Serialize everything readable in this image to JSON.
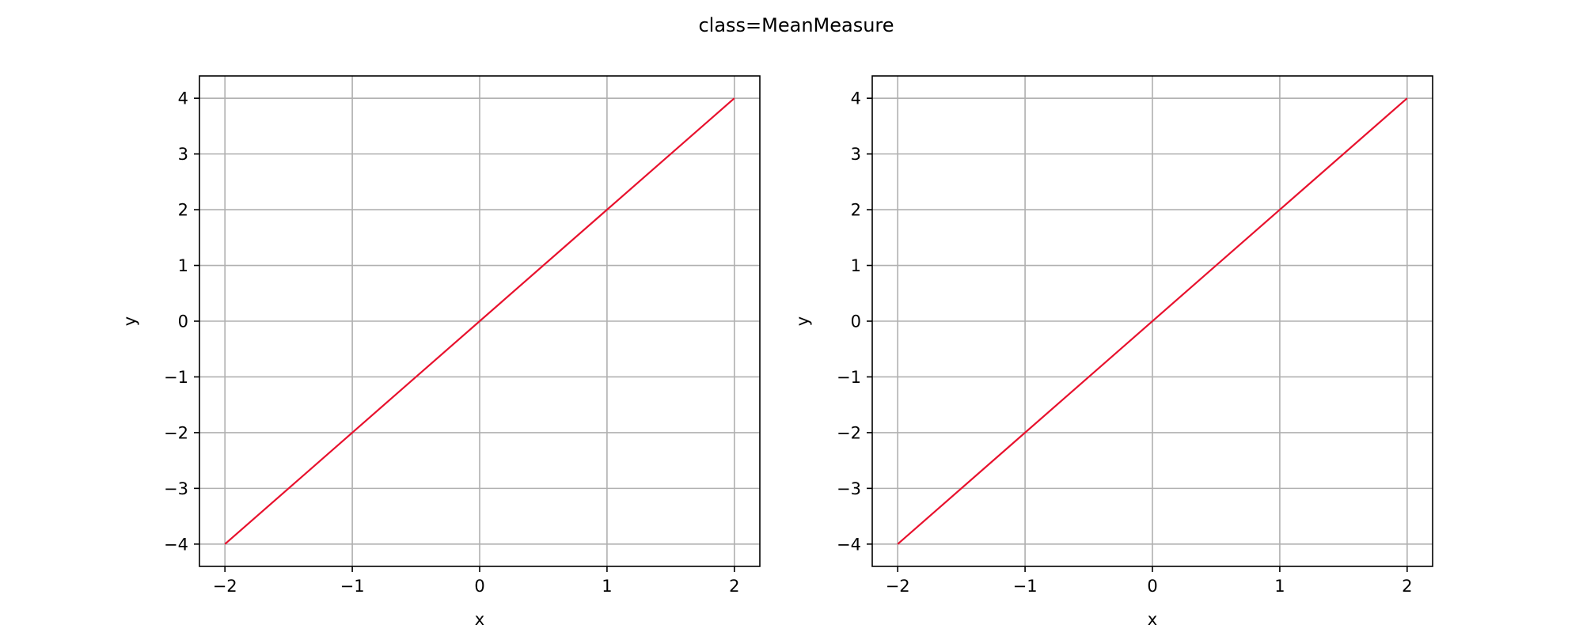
{
  "figure": {
    "title": "class=MeanMeasure"
  },
  "chart_data": [
    {
      "type": "line",
      "title": "",
      "xlabel": "x",
      "ylabel": "y",
      "xlim": [
        -2.2,
        2.2
      ],
      "ylim": [
        -4.4,
        4.4
      ],
      "xticks": [
        -2,
        -1,
        0,
        1,
        2
      ],
      "yticks": [
        -4,
        -3,
        -2,
        -1,
        0,
        1,
        2,
        3,
        4
      ],
      "xtick_labels": [
        "−2",
        "−1",
        "0",
        "1",
        "2"
      ],
      "ytick_labels": [
        "−4",
        "−3",
        "−2",
        "−1",
        "0",
        "1",
        "2",
        "3",
        "4"
      ],
      "grid": true,
      "series": [
        {
          "x": [
            -2,
            2
          ],
          "y": [
            -4,
            4
          ],
          "color": "#e8112d"
        }
      ]
    },
    {
      "type": "line",
      "title": "",
      "xlabel": "x",
      "ylabel": "y",
      "xlim": [
        -2.2,
        2.2
      ],
      "ylim": [
        -4.4,
        4.4
      ],
      "xticks": [
        -2,
        -1,
        0,
        1,
        2
      ],
      "yticks": [
        -4,
        -3,
        -2,
        -1,
        0,
        1,
        2,
        3,
        4
      ],
      "xtick_labels": [
        "−2",
        "−1",
        "0",
        "1",
        "2"
      ],
      "ytick_labels": [
        "−4",
        "−3",
        "−2",
        "−1",
        "0",
        "1",
        "2",
        "3",
        "4"
      ],
      "grid": true,
      "series": [
        {
          "x": [
            -2,
            2
          ],
          "y": [
            -4,
            4
          ],
          "color": "#e8112d"
        }
      ]
    }
  ],
  "colors": {
    "grid": "#b0b0b0",
    "axes": "#000000",
    "line": "#e8112d"
  }
}
